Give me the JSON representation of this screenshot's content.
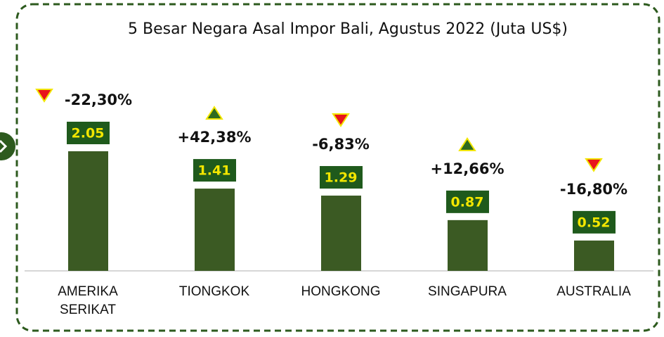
{
  "chart_data": {
    "type": "bar",
    "title": "5 Besar Negara Asal Impor Bali, Agustus 2022 (Juta US$)",
    "categories": [
      "AMERIKA SERIKAT",
      "TIONGKOK",
      "HONGKONG",
      "SINGAPURA",
      "AUSTRALIA"
    ],
    "values": [
      2.05,
      1.41,
      1.29,
      0.87,
      0.52
    ],
    "changes": [
      -22.3,
      42.38,
      -6.83,
      12.66,
      -16.8
    ],
    "change_labels": [
      "-22,30%",
      "+42,38%",
      "-6,83%",
      "+12,66%",
      "-16,80%"
    ],
    "color": "#3b5a23",
    "label_box_color": "#1f5a1c",
    "label_text_color": "#f2e600",
    "up_color": "#2e6b1f",
    "down_color": "#e8141c"
  }
}
